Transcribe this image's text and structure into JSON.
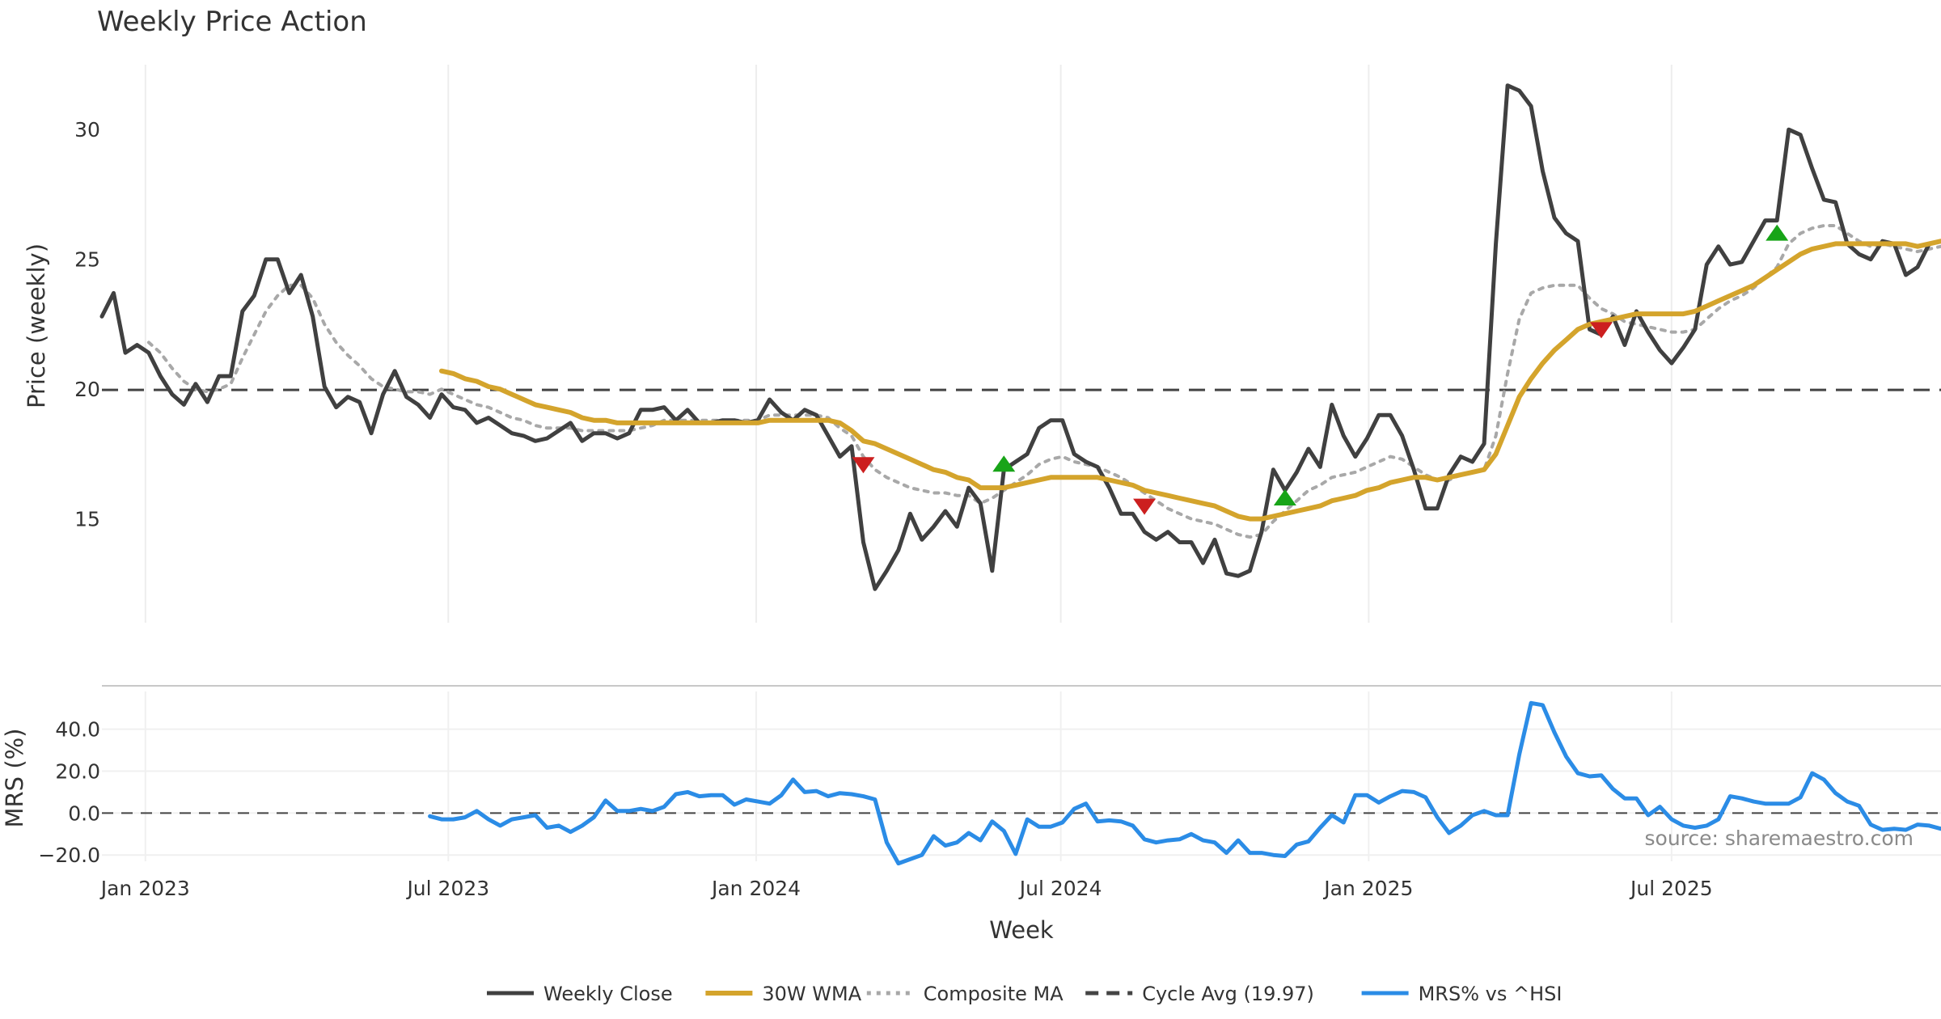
{
  "chart_data": [
    {
      "type": "line",
      "title": "Weekly Price Action",
      "ylabel": "Price (weekly)",
      "xlabel": "",
      "x_start": "2022-12-06",
      "x_step_days": 7,
      "ylim": [
        11,
        32.5
      ],
      "y_ticks": [
        "15",
        "20",
        "25",
        "30"
      ],
      "x_ticks": [
        "Jan 2023",
        "Jul 2023",
        "Jan 2024",
        "Jul 2024",
        "Jan 2025",
        "Jul 2025"
      ],
      "grid": true,
      "series": [
        {
          "name": "Weekly Close",
          "color": "#404040",
          "style": "solid",
          "values": [
            22.8,
            23.7,
            21.4,
            21.7,
            21.4,
            20.5,
            19.8,
            19.4,
            20.2,
            19.5,
            20.5,
            20.5,
            23.0,
            23.6,
            25.0,
            25.0,
            23.7,
            24.4,
            22.8,
            20.1,
            19.3,
            19.7,
            19.5,
            18.3,
            19.8,
            20.7,
            19.7,
            19.4,
            18.9,
            19.8,
            19.3,
            19.2,
            18.7,
            18.9,
            18.6,
            18.3,
            18.2,
            18.0,
            18.1,
            18.4,
            18.7,
            18.0,
            18.3,
            18.3,
            18.1,
            18.3,
            19.2,
            19.2,
            19.3,
            18.8,
            19.2,
            18.7,
            18.7,
            18.8,
            18.8,
            18.7,
            18.8,
            19.6,
            19.1,
            18.8,
            19.2,
            19.0,
            18.2,
            17.4,
            17.8,
            14.1,
            12.3,
            13.0,
            13.8,
            15.2,
            14.2,
            14.7,
            15.3,
            14.7,
            16.2,
            15.6,
            13.0,
            16.9,
            17.2,
            17.5,
            18.5,
            18.8,
            18.8,
            17.5,
            17.2,
            17.0,
            16.2,
            15.2,
            15.2,
            14.5,
            14.2,
            14.5,
            14.1,
            14.1,
            13.3,
            14.2,
            12.9,
            12.8,
            13.0,
            14.5,
            16.9,
            16.1,
            16.8,
            17.7,
            17.0,
            19.4,
            18.2,
            17.4,
            18.1,
            19.0,
            19.0,
            18.2,
            16.9,
            15.4,
            15.4,
            16.7,
            17.4,
            17.2,
            17.9,
            25.6,
            31.7,
            31.5,
            30.9,
            28.4,
            26.6,
            26.0,
            25.7,
            22.3,
            22.1,
            22.8,
            21.7,
            23.0,
            22.2,
            21.5,
            21.0,
            21.6,
            22.3,
            24.8,
            25.5,
            24.8,
            24.9,
            25.7,
            26.5,
            26.5,
            30.0,
            29.8,
            28.5,
            27.3,
            27.2,
            25.6,
            25.2,
            25.0,
            25.7,
            25.6,
            24.4,
            24.7,
            25.6,
            25.7
          ]
        },
        {
          "name": "30W WMA",
          "color": "#D4A42C",
          "style": "solid",
          "values": [
            null,
            null,
            null,
            null,
            null,
            null,
            null,
            null,
            null,
            null,
            null,
            null,
            null,
            null,
            null,
            null,
            null,
            null,
            null,
            null,
            null,
            null,
            null,
            null,
            null,
            null,
            null,
            null,
            null,
            20.7,
            20.6,
            20.4,
            20.3,
            20.1,
            20.0,
            19.8,
            19.6,
            19.4,
            19.3,
            19.2,
            19.1,
            18.9,
            18.8,
            18.8,
            18.7,
            18.7,
            18.7,
            18.7,
            18.7,
            18.7,
            18.7,
            18.7,
            18.7,
            18.7,
            18.7,
            18.7,
            18.7,
            18.8,
            18.8,
            18.8,
            18.8,
            18.8,
            18.8,
            18.7,
            18.4,
            18.0,
            17.9,
            17.7,
            17.5,
            17.3,
            17.1,
            16.9,
            16.8,
            16.6,
            16.5,
            16.2,
            16.2,
            16.2,
            16.3,
            16.4,
            16.5,
            16.6,
            16.6,
            16.6,
            16.6,
            16.6,
            16.5,
            16.4,
            16.3,
            16.1,
            16.0,
            15.9,
            15.8,
            15.7,
            15.6,
            15.5,
            15.3,
            15.1,
            15.0,
            15.0,
            15.1,
            15.2,
            15.3,
            15.4,
            15.5,
            15.7,
            15.8,
            15.9,
            16.1,
            16.2,
            16.4,
            16.5,
            16.6,
            16.6,
            16.5,
            16.6,
            16.7,
            16.8,
            16.9,
            17.5,
            18.6,
            19.7,
            20.4,
            21.0,
            21.5,
            21.9,
            22.3,
            22.5,
            22.6,
            22.7,
            22.8,
            22.9,
            22.9,
            22.9,
            22.9,
            22.9,
            23.0,
            23.2,
            23.4,
            23.6,
            23.8,
            24.0,
            24.3,
            24.6,
            24.9,
            25.2,
            25.4,
            25.5,
            25.6,
            25.6,
            25.6,
            25.6,
            25.6,
            25.6,
            25.6,
            25.5,
            25.6,
            25.7
          ]
        },
        {
          "name": "Composite MA",
          "color": "#A8A8A8",
          "style": "dotted",
          "values": [
            null,
            null,
            null,
            null,
            21.8,
            21.4,
            20.8,
            20.3,
            20.0,
            19.9,
            20.0,
            20.2,
            21.2,
            22.1,
            23.0,
            23.6,
            24.0,
            24.0,
            23.5,
            22.5,
            21.8,
            21.3,
            20.9,
            20.4,
            20.1,
            20.0,
            19.9,
            19.9,
            19.8,
            20.0,
            19.8,
            19.6,
            19.4,
            19.3,
            19.1,
            18.9,
            18.8,
            18.6,
            18.5,
            18.5,
            18.5,
            18.4,
            18.4,
            18.4,
            18.4,
            18.4,
            18.5,
            18.6,
            18.8,
            18.8,
            18.8,
            18.8,
            18.8,
            18.8,
            18.8,
            18.8,
            18.8,
            19.0,
            19.0,
            19.0,
            19.0,
            19.0,
            18.9,
            18.5,
            18.2,
            17.4,
            16.9,
            16.6,
            16.4,
            16.2,
            16.1,
            16.0,
            16.0,
            15.9,
            15.9,
            15.6,
            15.8,
            16.1,
            16.4,
            16.7,
            17.1,
            17.3,
            17.4,
            17.2,
            17.1,
            17.0,
            16.8,
            16.6,
            16.3,
            16.0,
            15.7,
            15.4,
            15.2,
            15.0,
            14.9,
            14.8,
            14.6,
            14.4,
            14.3,
            14.4,
            14.9,
            15.3,
            15.7,
            16.1,
            16.3,
            16.6,
            16.7,
            16.8,
            17.0,
            17.2,
            17.4,
            17.3,
            17.0,
            16.7,
            16.5,
            16.5,
            16.7,
            16.8,
            16.9,
            18.2,
            20.6,
            22.7,
            23.7,
            23.9,
            24.0,
            24.0,
            24.0,
            23.5,
            23.1,
            22.9,
            22.6,
            22.5,
            22.4,
            22.3,
            22.2,
            22.2,
            22.3,
            22.7,
            23.1,
            23.4,
            23.6,
            23.9,
            24.3,
            24.7,
            25.6,
            26.0,
            26.2,
            26.3,
            26.3,
            26.0,
            25.7,
            25.5,
            25.6,
            25.5,
            25.4,
            25.3,
            25.4,
            25.5
          ]
        },
        {
          "name": "Cycle Avg (19.97)",
          "color": "#444444",
          "style": "dashed",
          "value": 19.97
        }
      ],
      "signals": [
        {
          "type": "sell",
          "color": "#CC1F1F",
          "x": "2024-03-05",
          "y": 17.1
        },
        {
          "type": "buy",
          "color": "#18A418",
          "x": "2024-05-28",
          "y": 17.1
        },
        {
          "type": "sell",
          "color": "#CC1F1F",
          "x": "2024-08-20",
          "y": 15.5
        },
        {
          "type": "buy",
          "color": "#18A418",
          "x": "2024-11-12",
          "y": 15.8
        },
        {
          "type": "sell",
          "color": "#CC1F1F",
          "x": "2025-05-20",
          "y": 22.3
        },
        {
          "type": "buy",
          "color": "#18A418",
          "x": "2025-09-02",
          "y": 26.0
        }
      ]
    },
    {
      "type": "line",
      "title": "",
      "ylabel": "MRS (%)",
      "xlabel": "Week",
      "x_start": "2022-12-06",
      "x_step_days": 7,
      "ylim": [
        -23,
        58
      ],
      "y_ticks": [
        "40.0",
        "20.0",
        "0.0",
        "−20.0"
      ],
      "baseline": 0,
      "grid": true,
      "series": [
        {
          "name": "MRS% vs ^HSI",
          "color": "#2B8CE6",
          "style": "solid",
          "values": [
            null,
            null,
            null,
            null,
            null,
            null,
            null,
            null,
            null,
            null,
            null,
            null,
            null,
            null,
            null,
            null,
            null,
            null,
            null,
            null,
            null,
            null,
            null,
            null,
            null,
            null,
            null,
            null,
            -1.5,
            -3.0,
            -3.0,
            -2.0,
            1.0,
            -3.0,
            -6.0,
            -3.0,
            -2.0,
            -1.0,
            -7.0,
            -6.0,
            -9.0,
            -6.0,
            -2.0,
            6.0,
            1.0,
            1.0,
            2.0,
            1.0,
            3.0,
            9.0,
            10.0,
            8.0,
            8.5,
            8.5,
            4.0,
            6.5,
            5.5,
            4.5,
            8.5,
            16.0,
            10.0,
            10.5,
            8.0,
            9.5,
            9.0,
            8.0,
            6.5,
            -14.0,
            -24.0,
            -22.0,
            -20.0,
            -11.0,
            -15.5,
            -14.0,
            -9.5,
            -13.0,
            -4.0,
            -8.5,
            -19.5,
            -3.0,
            -6.5,
            -6.5,
            -4.5,
            2.0,
            4.5,
            -4.0,
            -3.5,
            -4.0,
            -6.0,
            -12.5,
            -14.0,
            -13.0,
            -12.5,
            -10.0,
            -13.0,
            -14.0,
            -19.0,
            -13.0,
            -19.0,
            -19.0,
            -20.0,
            -20.5,
            -15.0,
            -13.5,
            -7.0,
            -1.0,
            -4.5,
            8.5,
            8.5,
            5.0,
            8.0,
            10.5,
            10.0,
            7.5,
            -2.0,
            -9.5,
            -6.0,
            -1.0,
            1.0,
            -1.0,
            -1.0,
            28.0,
            52.5,
            51.5,
            38.5,
            27.0,
            19.0,
            17.5,
            18.0,
            11.5,
            7.0,
            7.0,
            -1.0,
            3.0,
            -3.0,
            -6.0,
            -7.0,
            -6.0,
            -3.0,
            8.0,
            7.0,
            5.5,
            4.5,
            4.5,
            4.5,
            7.5,
            19.0,
            16.0,
            9.5,
            5.5,
            3.5,
            -5.5,
            -8.0,
            -7.5,
            -8.0,
            -5.5,
            -6.0,
            -7.5,
            -5.0,
            -3.5
          ]
        }
      ]
    }
  ],
  "annotation": "source: sharemaestro.com",
  "legend": [
    {
      "label": "Weekly Close",
      "color": "#404040",
      "style": "solid"
    },
    {
      "label": "30W WMA",
      "color": "#D4A42C",
      "style": "solid"
    },
    {
      "label": "Composite MA",
      "color": "#A8A8A8",
      "style": "dotted"
    },
    {
      "label": "Cycle Avg (19.97)",
      "color": "#444444",
      "style": "dashed"
    },
    {
      "label": "MRS% vs ^HSI",
      "color": "#2B8CE6",
      "style": "solid"
    }
  ],
  "legend_position": "bottom-center"
}
